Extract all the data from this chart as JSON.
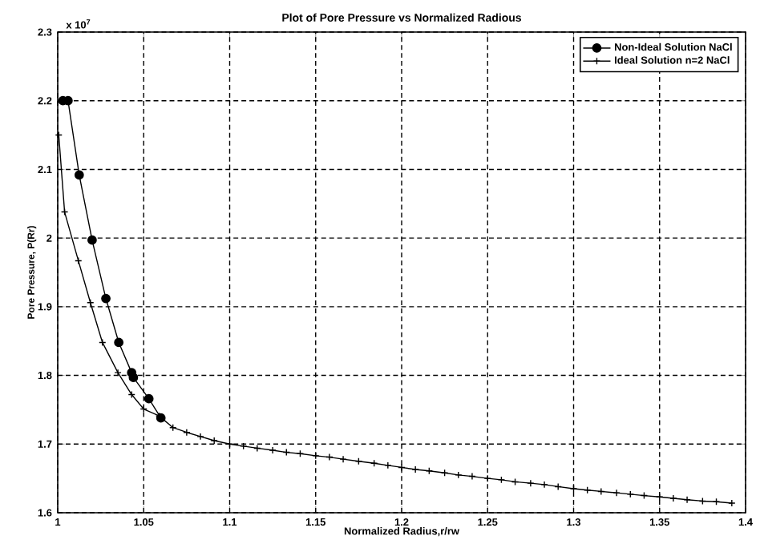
{
  "chart_data": {
    "type": "line",
    "title": "Plot of Pore Pressure vs Normalized Radious",
    "xlabel": "Normalized Radius,r/rw",
    "ylabel": "Pore Pressure, P(Rr)",
    "annotations": [
      "x 10$^{7}$"
    ],
    "series": [
      {
        "name": "Non-Ideal Solution NaCl",
        "color": "#000000",
        "marker": "circle",
        "x": [
          1.003,
          1.006,
          1.0125,
          1.02,
          1.028,
          1.0355,
          1.043,
          1.044,
          1.053,
          1.06
        ],
        "values": [
          2.2,
          2.2,
          2.092,
          1.997,
          1.912,
          1.848,
          1.804,
          1.797,
          1.766,
          1.738
        ]
      },
      {
        "name": "Ideal Solution n=2 NaCl",
        "color": "#000000",
        "marker": "cross",
        "x": [
          1.0006,
          1.004,
          1.012,
          1.019,
          1.026,
          1.035,
          1.043,
          1.05,
          1.059,
          1.067,
          1.075,
          1.083,
          1.091,
          1.1,
          1.108,
          1.116,
          1.125,
          1.133,
          1.141,
          1.15,
          1.158,
          1.166,
          1.175,
          1.184,
          1.192,
          1.2,
          1.208,
          1.216,
          1.225,
          1.233,
          1.241,
          1.25,
          1.258,
          1.266,
          1.275,
          1.283,
          1.291,
          1.3,
          1.308,
          1.316,
          1.325,
          1.333,
          1.341,
          1.35,
          1.358,
          1.366,
          1.375,
          1.383,
          1.392
        ],
        "values": [
          2.15,
          2.038,
          1.967,
          1.906,
          1.848,
          1.804,
          1.772,
          1.751,
          1.741,
          1.724,
          1.717,
          1.711,
          1.705,
          1.7,
          1.697,
          1.694,
          1.691,
          1.688,
          1.686,
          1.683,
          1.681,
          1.678,
          1.675,
          1.672,
          1.669,
          1.666,
          1.663,
          1.661,
          1.658,
          1.655,
          1.653,
          1.65,
          1.648,
          1.645,
          1.643,
          1.641,
          1.638,
          1.635,
          1.633,
          1.631,
          1.629,
          1.627,
          1.625,
          1.623,
          1.621,
          1.619,
          1.617,
          1.616,
          1.614
        ]
      }
    ],
    "xlim": [
      1,
      1.4
    ],
    "ylim": [
      1.6,
      2.3
    ],
    "xticks": [
      1,
      1.05,
      1.1,
      1.15,
      1.2,
      1.25,
      1.3,
      1.35,
      1.4
    ],
    "yticks": [
      1.6,
      1.7,
      1.8,
      1.9,
      2,
      2.1,
      2.2,
      2.3
    ],
    "grid": true,
    "legend": "top right",
    "line_style": "solid"
  }
}
